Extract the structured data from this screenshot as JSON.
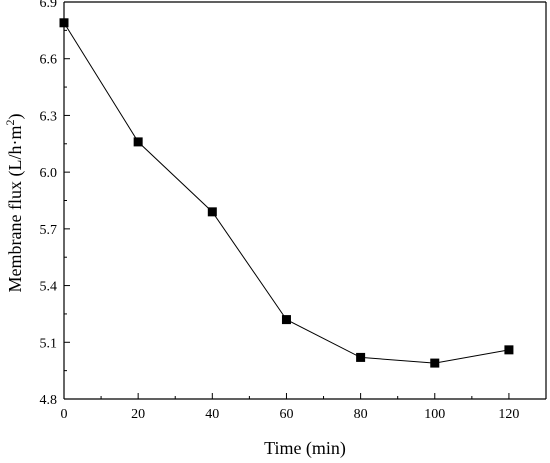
{
  "chart_data": {
    "type": "line",
    "xlabel": "Time (min)",
    "ylabel": {
      "main": "Membrane flux (L/h·m",
      "superscript": "2",
      "close": ")"
    },
    "xlim": [
      0,
      130
    ],
    "ylim": [
      4.8,
      6.9
    ],
    "x_ticks": [
      0,
      20,
      40,
      60,
      80,
      100,
      120
    ],
    "x_tick_labels": [
      "0",
      "20",
      "40",
      "60",
      "80",
      "100",
      "120"
    ],
    "y_ticks": [
      4.8,
      5.1,
      5.4,
      5.7,
      6.0,
      6.3,
      6.6,
      6.9
    ],
    "y_tick_labels": [
      "4.8",
      "5.1",
      "5.4",
      "5.7",
      "6.0",
      "6.3",
      "6.6",
      "6.9"
    ],
    "marker": "square",
    "grid": false,
    "color": "#000000",
    "series": [
      {
        "x": [
          0,
          20,
          40,
          60,
          80,
          100,
          120
        ],
        "y": [
          6.79,
          6.16,
          5.79,
          5.22,
          5.02,
          4.99,
          5.06
        ]
      }
    ]
  }
}
